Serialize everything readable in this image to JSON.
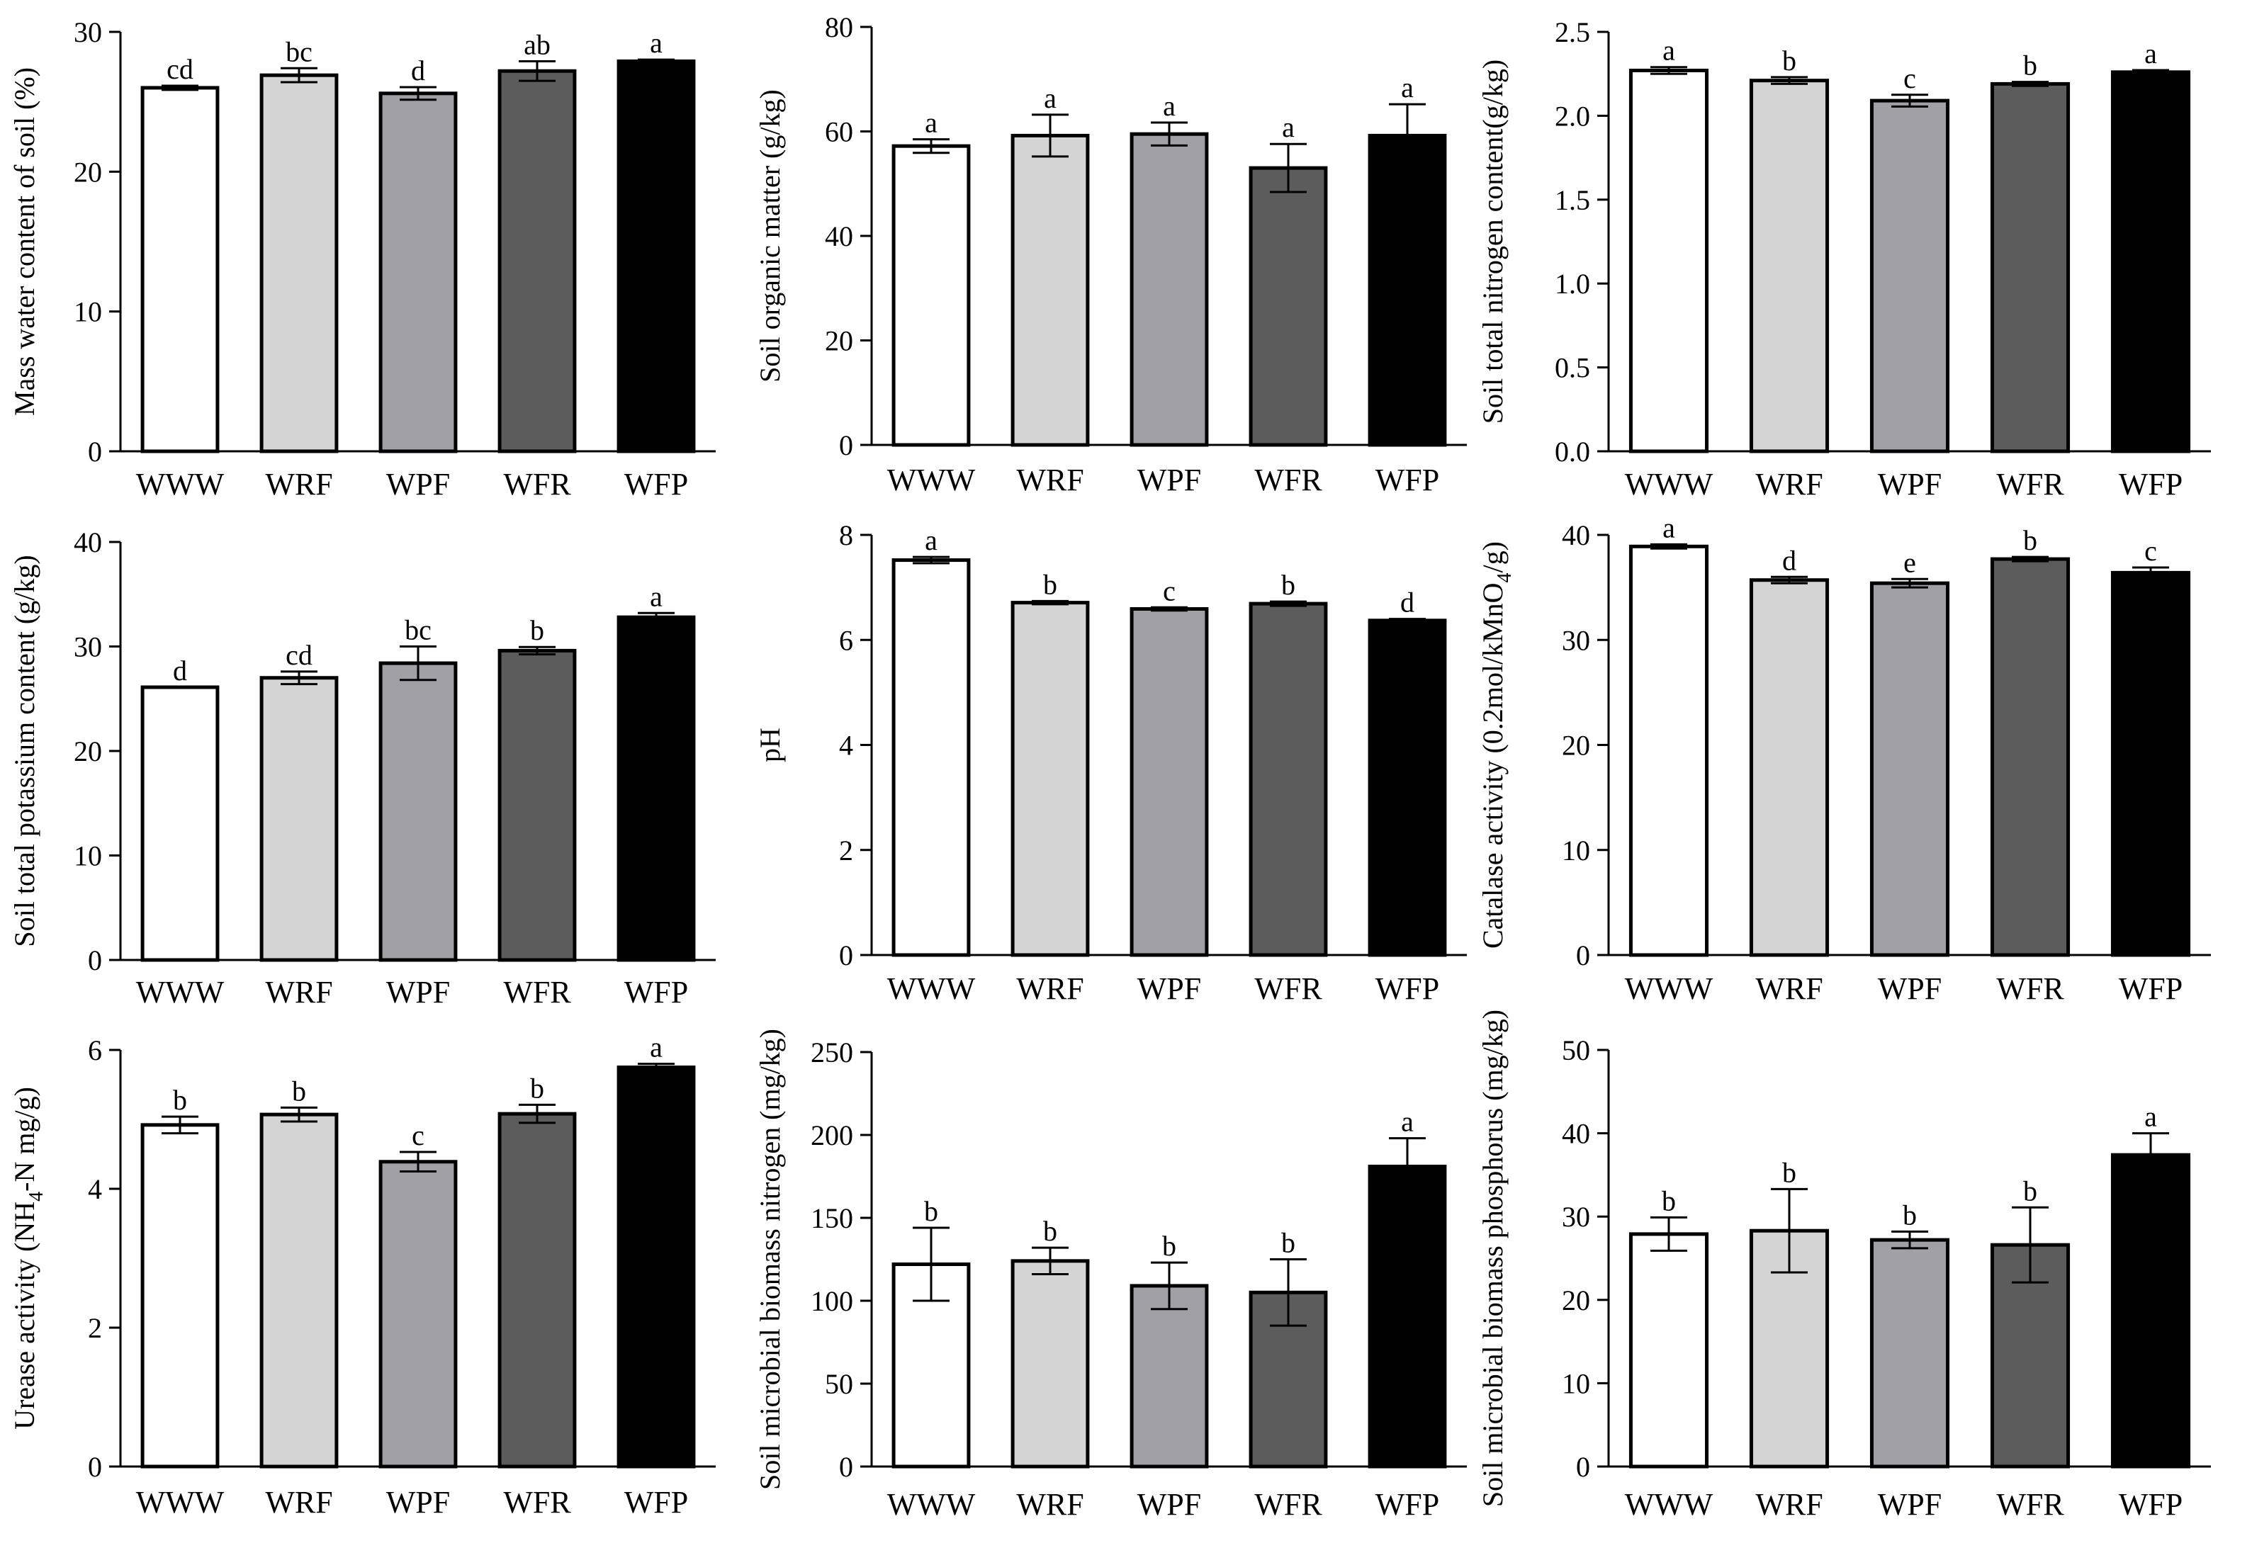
{
  "chart_data": [
    {
      "type": "bar",
      "ylabel": "Mass water content of soil (%)",
      "categories": [
        "WWW",
        "WRF",
        "WPF",
        "WFR",
        "WFP"
      ],
      "values": [
        26.0,
        26.9,
        25.6,
        27.2,
        27.9
      ],
      "errors": [
        0.15,
        0.5,
        0.45,
        0.7,
        0.12
      ],
      "letters": [
        "cd",
        "bc",
        "d",
        "ab",
        "a"
      ],
      "ylim": [
        0,
        30
      ],
      "yticks": [
        "0",
        "10",
        "20",
        "30"
      ]
    },
    {
      "type": "bar",
      "ylabel": "Soil organic matter (g/kg)",
      "categories": [
        "WWW",
        "WRF",
        "WPF",
        "WFR",
        "WFP"
      ],
      "values": [
        57.2,
        59.2,
        59.5,
        53.0,
        59.2
      ],
      "errors": [
        1.3,
        4.0,
        2.2,
        4.6,
        6.0
      ],
      "letters": [
        "a",
        "a",
        "a",
        "a",
        "a"
      ],
      "ylim": [
        0,
        80
      ],
      "yticks": [
        "0",
        "20",
        "40",
        "60",
        "80"
      ]
    },
    {
      "type": "bar",
      "ylabel": "Soil total nitrogen content(g/kg)",
      "categories": [
        "WWW",
        "WRF",
        "WPF",
        "WFR",
        "WFP"
      ],
      "values": [
        2.27,
        2.21,
        2.09,
        2.19,
        2.26
      ],
      "errors": [
        0.02,
        0.02,
        0.035,
        0.012,
        0.012
      ],
      "letters": [
        "a",
        "b",
        "c",
        "b",
        "a"
      ],
      "ylim": [
        0,
        2.5
      ],
      "yticks": [
        "0.0",
        "0.5",
        "1.0",
        "1.5",
        "2.0",
        "2.5"
      ]
    },
    {
      "type": "bar",
      "ylabel": "Soil total potassium content (g/kg)",
      "categories": [
        "WWW",
        "WRF",
        "WPF",
        "WFR",
        "WFP"
      ],
      "values": [
        26.1,
        27.0,
        28.4,
        29.6,
        32.8
      ],
      "errors": [
        0.0,
        0.6,
        1.6,
        0.35,
        0.4
      ],
      "letters": [
        "d",
        "cd",
        "bc",
        "b",
        "a"
      ],
      "ylim": [
        0,
        40
      ],
      "yticks": [
        "0",
        "10",
        "20",
        "30",
        "40"
      ]
    },
    {
      "type": "bar",
      "ylabel": "pH",
      "categories": [
        "WWW",
        "WRF",
        "WPF",
        "WFR",
        "WFP"
      ],
      "values": [
        7.52,
        6.71,
        6.59,
        6.69,
        6.37
      ],
      "errors": [
        0.06,
        0.03,
        0.03,
        0.04,
        0.03
      ],
      "letters": [
        "a",
        "b",
        "c",
        "b",
        "d"
      ],
      "ylim": [
        0,
        8
      ],
      "yticks": [
        "0",
        "2",
        "4",
        "6",
        "8"
      ]
    },
    {
      "type": "bar",
      "ylabel": "Catalase activity (0.2mol/kMnO",
      "ylabel_sub": "4",
      "ylabel_tail": "/g)",
      "categories": [
        "WWW",
        "WRF",
        "WPF",
        "WFR",
        "WFP"
      ],
      "values": [
        38.9,
        35.7,
        35.4,
        37.7,
        36.4
      ],
      "errors": [
        0.2,
        0.3,
        0.4,
        0.2,
        0.5
      ],
      "letters": [
        "a",
        "d",
        "e",
        "b",
        "c"
      ],
      "ylim": [
        0,
        40
      ],
      "yticks": [
        "0",
        "10",
        "20",
        "30",
        "40"
      ]
    },
    {
      "type": "bar",
      "ylabel": "Urease activity (NH",
      "ylabel_sub": "4",
      "ylabel_tail": "-N mg/g)",
      "categories": [
        "WWW",
        "WRF",
        "WPF",
        "WFR",
        "WFP"
      ],
      "values": [
        4.92,
        5.07,
        4.39,
        5.08,
        5.75
      ],
      "errors": [
        0.12,
        0.1,
        0.14,
        0.13,
        0.05
      ],
      "letters": [
        "b",
        "b",
        "c",
        "b",
        "a"
      ],
      "ylim": [
        0,
        6
      ],
      "yticks": [
        "0",
        "2",
        "4",
        "6"
      ]
    },
    {
      "type": "bar",
      "ylabel": "Soil microbial biomass nitrogen (mg/kg)",
      "categories": [
        "WWW",
        "WRF",
        "WPF",
        "WFR",
        "WFP"
      ],
      "values": [
        122,
        124,
        109,
        105,
        181
      ],
      "errors": [
        22,
        8,
        14,
        20,
        17
      ],
      "letters": [
        "b",
        "b",
        "b",
        "b",
        "a"
      ],
      "ylim": [
        0,
        250
      ],
      "yticks": [
        "0",
        "50",
        "100",
        "150",
        "200",
        "250"
      ]
    },
    {
      "type": "bar",
      "ylabel": "Soil microbial biomass phosphorus (mg/kg)",
      "categories": [
        "WWW",
        "WRF",
        "WPF",
        "WFR",
        "WFP"
      ],
      "values": [
        27.9,
        28.3,
        27.2,
        26.6,
        37.4
      ],
      "errors": [
        2.0,
        5.0,
        1.0,
        4.5,
        2.6
      ],
      "letters": [
        "b",
        "b",
        "b",
        "b",
        "a"
      ],
      "ylim": [
        0,
        50
      ],
      "yticks": [
        "0",
        "10",
        "20",
        "30",
        "40",
        "50"
      ]
    }
  ],
  "colors": {
    "bar_fills": [
      "#ffffff",
      "#d4d4d4",
      "#a1a0a6",
      "#5c5c5c",
      "#000000"
    ],
    "stroke": "#000000"
  }
}
